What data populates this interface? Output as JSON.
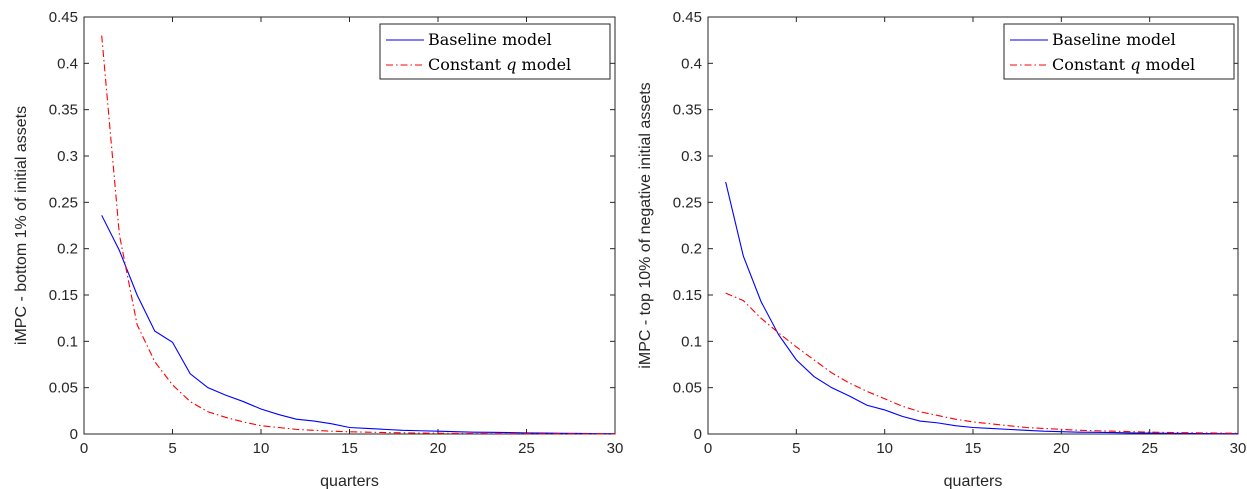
{
  "chart_data": [
    {
      "type": "line",
      "title": "",
      "xlabel": "quarters",
      "ylabel": "iMPC - bottom 1% of initial assets",
      "xlim": [
        0,
        30
      ],
      "ylim": [
        0,
        0.45
      ],
      "xticks": [
        0,
        5,
        10,
        15,
        20,
        25,
        30
      ],
      "yticks": [
        0,
        0.05,
        0.1,
        0.15,
        0.2,
        0.25,
        0.3,
        0.35,
        0.4,
        0.45
      ],
      "grid": false,
      "legend_position": "top-right",
      "x": [
        1,
        2,
        3,
        4,
        5,
        6,
        7,
        8,
        9,
        10,
        11,
        12,
        13,
        14,
        15,
        16,
        17,
        18,
        19,
        20,
        21,
        22,
        23,
        24,
        25,
        26,
        27,
        28,
        29,
        30
      ],
      "series": [
        {
          "name": "Baseline model",
          "color": "#0000ff",
          "dash": "solid",
          "values": [
            0.236,
            0.198,
            0.15,
            0.111,
            0.099,
            0.065,
            0.05,
            0.042,
            0.035,
            0.027,
            0.021,
            0.016,
            0.014,
            0.011,
            0.007,
            0.006,
            0.005,
            0.004,
            0.0035,
            0.003,
            0.0025,
            0.002,
            0.0018,
            0.0015,
            0.0012,
            0.001,
            0.0008,
            0.0006,
            0.0004,
            0.0003
          ]
        },
        {
          "name": "Constant q model",
          "name_prefix": "Constant ",
          "name_var": "q",
          "name_suffix": " model",
          "color": "#ff0000",
          "dash": "dashdot",
          "values": [
            0.43,
            0.215,
            0.118,
            0.078,
            0.053,
            0.035,
            0.024,
            0.018,
            0.013,
            0.009,
            0.007,
            0.005,
            0.004,
            0.003,
            0.0024,
            0.002,
            0.0016,
            0.0013,
            0.001,
            0.0008,
            0.0006,
            0.0005,
            0.0004,
            0.0003,
            0.0003,
            0.0002,
            0.0002,
            0.0001,
            0.0001,
            0.0001
          ]
        }
      ]
    },
    {
      "type": "line",
      "title": "",
      "xlabel": "quarters",
      "ylabel": "iMPC - top 10% of negative initial assets",
      "xlim": [
        0,
        30
      ],
      "ylim": [
        0,
        0.45
      ],
      "xticks": [
        0,
        5,
        10,
        15,
        20,
        25,
        30
      ],
      "yticks": [
        0,
        0.05,
        0.1,
        0.15,
        0.2,
        0.25,
        0.3,
        0.35,
        0.4,
        0.45
      ],
      "grid": false,
      "legend_position": "top-right",
      "x": [
        1,
        2,
        3,
        4,
        5,
        6,
        7,
        8,
        9,
        10,
        11,
        12,
        13,
        14,
        15,
        16,
        17,
        18,
        19,
        20,
        21,
        22,
        23,
        24,
        25,
        26,
        27,
        28,
        29,
        30
      ],
      "series": [
        {
          "name": "Baseline model",
          "color": "#0000ff",
          "dash": "solid",
          "values": [
            0.272,
            0.192,
            0.143,
            0.107,
            0.08,
            0.062,
            0.05,
            0.041,
            0.031,
            0.026,
            0.019,
            0.014,
            0.012,
            0.009,
            0.007,
            0.006,
            0.005,
            0.004,
            0.003,
            0.0025,
            0.002,
            0.0018,
            0.0015,
            0.0012,
            0.001,
            0.0008,
            0.0006,
            0.0005,
            0.0004,
            0.0003
          ]
        },
        {
          "name": "Constant q model",
          "name_prefix": "Constant ",
          "name_var": "q",
          "name_suffix": " model",
          "color": "#ff0000",
          "dash": "dashdot",
          "values": [
            0.152,
            0.144,
            0.125,
            0.109,
            0.094,
            0.08,
            0.066,
            0.055,
            0.046,
            0.038,
            0.03,
            0.024,
            0.02,
            0.016,
            0.013,
            0.011,
            0.009,
            0.007,
            0.006,
            0.005,
            0.004,
            0.0035,
            0.003,
            0.0025,
            0.002,
            0.0017,
            0.0014,
            0.0012,
            0.001,
            0.0008
          ]
        }
      ]
    }
  ]
}
